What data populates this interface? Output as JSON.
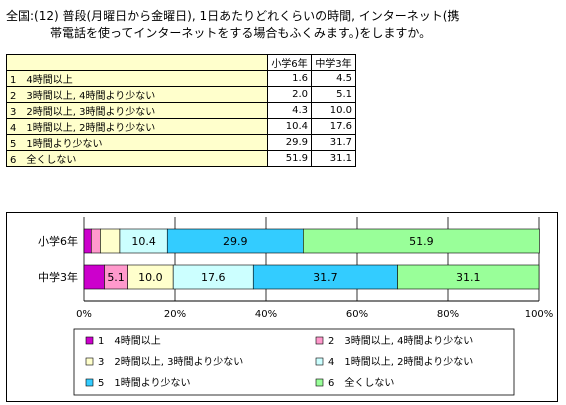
{
  "title": {
    "line1": "全国:(12) 普段(月曜日から金曜日), 1日あたりどれくらいの時間, インターネット(携",
    "line2": "帯電話を使ってインターネットをする場合もふくみます。)をしますか。"
  },
  "table": {
    "headers": [
      "小学6年",
      "中学3年"
    ],
    "rows": [
      {
        "label": "1　4時間以上",
        "values": [
          "1.6",
          "4.5"
        ]
      },
      {
        "label": "2　3時間以上, 4時間より少ない",
        "values": [
          "2.0",
          "5.1"
        ]
      },
      {
        "label": "3　2時間以上, 3時間より少ない",
        "values": [
          "4.3",
          "10.0"
        ]
      },
      {
        "label": "4　1時間以上, 2時間より少ない",
        "values": [
          "10.4",
          "17.6"
        ]
      },
      {
        "label": "5　1時間より少ない",
        "values": [
          "29.9",
          "31.7"
        ]
      },
      {
        "label": "6　全くしない",
        "values": [
          "51.9",
          "31.1"
        ]
      }
    ]
  },
  "chart_data": {
    "type": "bar",
    "orientation": "horizontal",
    "stacked": true,
    "categories": [
      "小学6年",
      "中学3年"
    ],
    "series": [
      {
        "name": "1　4時間以上",
        "color": "#cc00cc",
        "values": [
          1.6,
          4.5
        ]
      },
      {
        "name": "2　3時間以上, 4時間より少ない",
        "color": "#ff99cc",
        "values": [
          2.0,
          5.1
        ]
      },
      {
        "name": "3　2時間以上, 3時間より少ない",
        "color": "#ffffcc",
        "values": [
          4.3,
          10.0
        ]
      },
      {
        "name": "4　1時間以上, 2時間より少ない",
        "color": "#ccffff",
        "values": [
          10.4,
          17.6
        ]
      },
      {
        "name": "5　1時間より少ない",
        "color": "#33ccff",
        "values": [
          29.9,
          31.7
        ]
      },
      {
        "name": "6　全くしない",
        "color": "#99ff99",
        "values": [
          51.9,
          31.1
        ]
      }
    ],
    "data_labels": [
      [
        "",
        "",
        "",
        "10.4",
        "29.9",
        "51.9"
      ],
      [
        "",
        "5.1",
        "10.0",
        "17.6",
        "31.7",
        "31.1"
      ]
    ],
    "x_ticks": [
      "0%",
      "20%",
      "40%",
      "60%",
      "80%",
      "100%"
    ],
    "xlim": [
      0,
      100
    ],
    "legend_position": "bottom",
    "grid": true
  }
}
